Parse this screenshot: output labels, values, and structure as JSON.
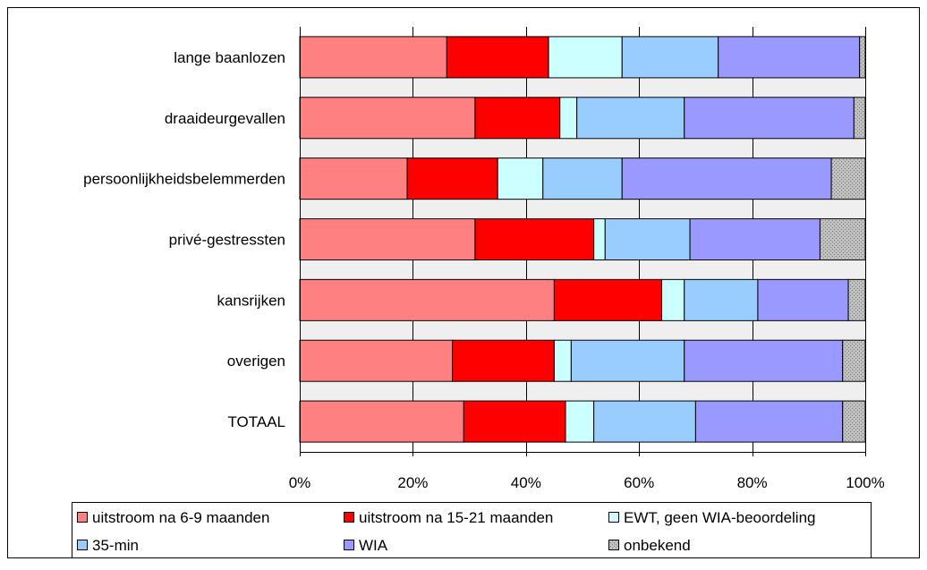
{
  "chart_data": {
    "type": "bar",
    "orientation": "horizontal",
    "stacked": "percent",
    "title": "",
    "xlabel": "",
    "ylabel": "",
    "xlim": [
      0,
      100
    ],
    "x_ticks": [
      "0%",
      "20%",
      "40%",
      "60%",
      "80%",
      "100%"
    ],
    "grid": true,
    "legend_position": "bottom",
    "categories": [
      "lange baanlozen",
      "draaideurgevallen",
      "persoonlijkheidsbelemmerden",
      "privé-gestressten",
      "kansrijken",
      "overigen",
      "TOTAAL"
    ],
    "series": [
      {
        "name": "uitstroom na 6-9 maanden",
        "color": "#FF8080",
        "values": [
          26,
          31,
          19,
          31,
          45,
          27,
          29
        ]
      },
      {
        "name": "uitstroom na 15-21 maanden",
        "color": "#FF0000",
        "values": [
          18,
          15,
          16,
          21,
          19,
          18,
          18
        ]
      },
      {
        "name": "EWT, geen WIA-beoordeling",
        "color": "#CCFFFF",
        "values": [
          13,
          3,
          8,
          2,
          4,
          3,
          5
        ]
      },
      {
        "name": "35-min",
        "color": "#99CCFF",
        "values": [
          17,
          19,
          14,
          15,
          13,
          20,
          18
        ]
      },
      {
        "name": "WIA",
        "color": "#9999FF",
        "values": [
          25,
          30,
          37,
          23,
          16,
          28,
          26
        ]
      },
      {
        "name": "onbekend",
        "color": "#C0C0C0",
        "pattern": "dotted",
        "values": [
          1,
          2,
          6,
          8,
          3,
          4,
          4
        ]
      }
    ]
  }
}
